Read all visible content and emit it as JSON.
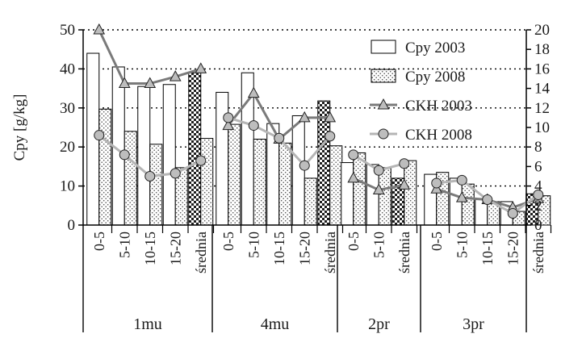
{
  "chart_data": {
    "type": "bar",
    "title": "",
    "ylabel": "Cpy [g/kg]",
    "ylim": [
      0,
      50
    ],
    "yticks": [
      0,
      10,
      20,
      30,
      40,
      50
    ],
    "y2lim": [
      0,
      20
    ],
    "y2ticks": [
      0,
      2,
      4,
      6,
      8,
      10,
      12,
      14,
      16,
      18,
      20
    ],
    "grid": "dotted horizontal at each left-axis tick",
    "legend_position": "top-right",
    "groups": [
      {
        "name": "1mu",
        "categories": [
          "0-5",
          "5-10",
          "10-15",
          "15-20",
          "średnia"
        ]
      },
      {
        "name": "4mu",
        "categories": [
          "0-5",
          "5-10",
          "10-15",
          "15-20",
          "średnia"
        ]
      },
      {
        "name": "2pr",
        "categories": [
          "0-5",
          "5-10",
          "średnia"
        ]
      },
      {
        "name": "3pr",
        "categories": [
          "0-5",
          "5-10",
          "10-15",
          "15-20",
          "średnia"
        ]
      }
    ],
    "series": [
      {
        "name": "Cpy 2003",
        "type": "bar",
        "axis": "left",
        "values": [
          [
            44,
            40.5,
            35.5,
            36,
            39
          ],
          [
            34,
            39,
            26,
            28,
            31.8
          ],
          [
            16,
            15.5,
            12
          ],
          [
            13,
            12,
            6.5,
            6,
            8
          ]
        ]
      },
      {
        "name": "Cpy 2008",
        "type": "bar",
        "axis": "left",
        "values": [
          [
            29.7,
            24,
            20.7,
            14.7,
            22.2
          ],
          [
            25.8,
            22,
            21,
            12,
            20.3
          ],
          [
            18.5,
            14.7,
            16.5
          ],
          [
            13.5,
            10.5,
            6,
            3.5,
            7.5
          ]
        ]
      },
      {
        "name": "CKH 2003",
        "type": "line",
        "axis": "right",
        "values": [
          [
            20,
            14.5,
            14.5,
            15.2,
            16
          ],
          [
            10.2,
            13.5,
            8.8,
            11,
            11
          ]
        ],
        "segments": [
          [
            4.8,
            3.6,
            4.1
          ],
          [
            3.7,
            2.8,
            2.6,
            1.8,
            2.7
          ]
        ]
      },
      {
        "name": "CKH 2008",
        "type": "line",
        "axis": "right",
        "values": [
          [
            9.2,
            7.2,
            5,
            5.3,
            6.6
          ],
          [
            11,
            10.2,
            8.9,
            6.1,
            9.1
          ],
          [
            7.2,
            5.6,
            6.3
          ],
          [
            4.3,
            4.6,
            2.6,
            1.2,
            3.1
          ]
        ]
      }
    ],
    "colors": {
      "cpy2003": "#ffffff",
      "cpy2008": "#f2f2f2",
      "average_bar": "#222222",
      "ckh2003": "#7a7a7a",
      "ckh2008": "#b5b5b5"
    }
  }
}
